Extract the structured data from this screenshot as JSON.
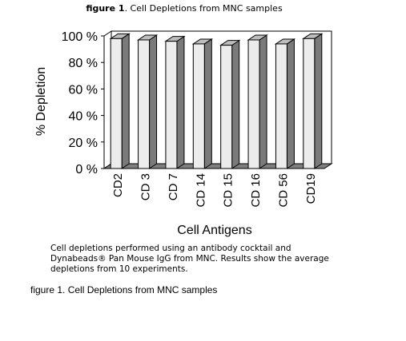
{
  "figure_title": {
    "prefix": "figure 1",
    "rest": ". Cell Depletions from MNC samples"
  },
  "chart_data": {
    "type": "bar",
    "title": "",
    "xlabel": "Cell Antigens",
    "ylabel": "% Depletion",
    "categories": [
      "CD2",
      "CD 3",
      "CD 7",
      "CD 14",
      "CD 15",
      "CD 16",
      "CD 56",
      "CD19"
    ],
    "values": [
      98,
      97,
      96,
      94,
      93,
      97,
      94,
      98
    ],
    "ylim": [
      0,
      100
    ],
    "yticks": [
      "0 %",
      "20 %",
      "40 %",
      "60 %",
      "80 %",
      "100 %"
    ],
    "grid": false,
    "legend": "none",
    "bar_face_color": "#ececec",
    "bar_side_color": "#7a7a7a",
    "wall_color": "#ffffff",
    "floor_color": "#7f7f7f"
  },
  "caption": "Cell depletions performed using an antibody cocktail and Dynabeads® Pan Mouse IgG from MNC. Results show the average depletions from 10 experiments.",
  "footer_caption": "figure 1. Cell Depletions from MNC samples"
}
